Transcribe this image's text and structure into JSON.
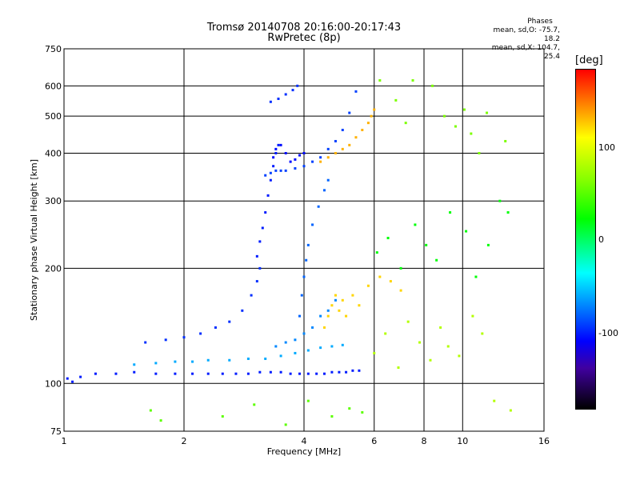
{
  "chart_data": {
    "type": "scatter",
    "title": "Tromsø 20140708 20:16:00-20:17:43",
    "subtitle": "RwPretec (8p)",
    "xlabel": "Frequency [MHz]",
    "ylabel": "Stationary phase Virtual Height [km]",
    "x_scale": "log",
    "y_scale": "log",
    "xlim": [
      1,
      16
    ],
    "ylim": [
      75,
      750
    ],
    "x_ticks": [
      1,
      2,
      4,
      6,
      8,
      10,
      16
    ],
    "y_ticks": [
      75,
      100,
      200,
      300,
      400,
      500,
      600,
      750
    ],
    "x_gridlines": [
      2,
      4,
      6,
      8,
      10
    ],
    "y_gridlines": [
      100,
      200,
      300,
      400,
      500,
      600
    ],
    "grid": true,
    "legend": {
      "title": "Phases",
      "lines": [
        "mean, sd,O: -75.7, 18.2",
        "mean, sd,X: 104.7, 25.4"
      ],
      "position": "top-right"
    },
    "colorbar": {
      "label": "[deg]",
      "ticks": [
        100,
        0,
        -100
      ],
      "range": [
        -180,
        180
      ]
    },
    "series": [
      {
        "trace": "O-ground",
        "x": [
          1.02,
          1.05,
          1.1,
          1.2,
          1.35,
          1.5,
          1.7,
          1.9,
          2.1,
          2.3,
          2.5,
          2.7,
          2.9,
          3.1,
          3.3,
          3.5,
          3.7,
          3.9,
          4.1,
          4.3,
          4.5,
          4.7,
          4.9,
          5.1,
          5.3,
          5.5
        ],
        "y": [
          103,
          101,
          104,
          106,
          106,
          107,
          106,
          106,
          106,
          106,
          106,
          106,
          106,
          107,
          107,
          107,
          106,
          106,
          106,
          106,
          106,
          107,
          107,
          107,
          108,
          108
        ],
        "phase": -100
      },
      {
        "trace": "O-mid",
        "x": [
          1.6,
          1.8,
          2.0,
          2.2,
          2.4,
          2.6,
          2.8,
          2.95,
          3.05,
          3.1
        ],
        "y": [
          128,
          130,
          132,
          135,
          140,
          145,
          155,
          170,
          185,
          200
        ],
        "phase": -95
      },
      {
        "trace": "O-rise",
        "x": [
          3.05,
          3.1,
          3.15,
          3.2,
          3.25,
          3.3,
          3.35,
          3.4,
          3.45
        ],
        "y": [
          215,
          235,
          255,
          280,
          310,
          340,
          370,
          400,
          420
        ],
        "phase": -100
      },
      {
        "trace": "O-F2",
        "x": [
          3.2,
          3.3,
          3.4,
          3.5,
          3.6,
          3.8,
          4.0,
          4.2,
          4.4,
          4.6,
          4.8,
          5.0,
          5.2,
          5.4
        ],
        "y": [
          350,
          355,
          360,
          360,
          360,
          365,
          370,
          380,
          390,
          410,
          430,
          460,
          510,
          580
        ],
        "phase": -90
      },
      {
        "trace": "O-F2-upper",
        "x": [
          3.3,
          3.45,
          3.6,
          3.75,
          3.85
        ],
        "y": [
          545,
          555,
          570,
          585,
          600
        ],
        "phase": -95
      },
      {
        "trace": "O-cluster",
        "x": [
          3.35,
          3.4,
          3.5,
          3.6,
          3.7,
          3.8,
          3.9,
          4.0
        ],
        "y": [
          390,
          410,
          420,
          400,
          380,
          385,
          395,
          400
        ],
        "phase": -105
      },
      {
        "trace": "X-low",
        "x": [
          1.5,
          1.7,
          1.9,
          2.1,
          2.3,
          2.6,
          2.9,
          3.2,
          3.5,
          3.8,
          4.1,
          4.4,
          4.7,
          5.0
        ],
        "y": [
          112,
          113,
          114,
          114,
          115,
          115,
          116,
          116,
          118,
          120,
          122,
          124,
          125,
          126
        ],
        "phase": -60
      },
      {
        "trace": "X-mid",
        "x": [
          3.4,
          3.6,
          3.8,
          4.0,
          4.2,
          4.4,
          4.6,
          4.8
        ],
        "y": [
          125,
          128,
          130,
          135,
          140,
          150,
          155,
          165
        ],
        "phase": -70
      },
      {
        "trace": "X-rise",
        "x": [
          3.9,
          3.95,
          4.0,
          4.05,
          4.1,
          4.2,
          4.35,
          4.5,
          4.6
        ],
        "y": [
          150,
          170,
          190,
          210,
          230,
          260,
          290,
          320,
          340
        ],
        "phase": -80
      },
      {
        "trace": "X-F2",
        "x": [
          4.4,
          4.6,
          4.8,
          5.0,
          5.2,
          5.4,
          5.6,
          5.8,
          5.9,
          6.0
        ],
        "y": [
          380,
          390,
          400,
          410,
          420,
          440,
          460,
          480,
          500,
          520
        ],
        "phase": 130
      },
      {
        "trace": "X-cluster",
        "x": [
          4.5,
          4.6,
          4.7,
          4.8,
          4.9,
          5.0,
          5.1,
          5.3,
          5.5,
          5.8,
          6.2,
          6.6,
          7.0
        ],
        "y": [
          140,
          150,
          160,
          170,
          155,
          165,
          150,
          170,
          160,
          180,
          190,
          185,
          175
        ],
        "phase": 120
      },
      {
        "trace": "scatter-high",
        "x": [
          6.2,
          6.8,
          7.2,
          7.5,
          8.4,
          9.0,
          9.6,
          10.1,
          10.5,
          11.0,
          11.5,
          12.8
        ],
        "y": [
          620,
          550,
          480,
          620,
          600,
          500,
          470,
          520,
          450,
          400,
          510,
          430
        ],
        "phase": 60
      },
      {
        "trace": "scatter-mid",
        "x": [
          6.1,
          6.5,
          7.0,
          7.6,
          8.1,
          8.6,
          9.3,
          10.2,
          10.8,
          11.6,
          12.4,
          13.0
        ],
        "y": [
          220,
          240,
          200,
          260,
          230,
          210,
          280,
          250,
          190,
          230,
          300,
          280
        ],
        "phase": 20
      },
      {
        "trace": "scatter-low",
        "x": [
          6.0,
          6.4,
          6.9,
          7.3,
          7.8,
          8.3,
          8.8,
          9.2,
          9.8,
          10.6,
          11.2,
          12.0,
          13.2
        ],
        "y": [
          120,
          135,
          110,
          145,
          128,
          115,
          140,
          125,
          118,
          150,
          135,
          90,
          85
        ],
        "phase": 80
      },
      {
        "trace": "stray-low",
        "x": [
          1.65,
          1.75,
          2.5,
          3.0,
          3.6,
          4.1,
          4.7,
          5.2,
          5.6
        ],
        "y": [
          85,
          80,
          82,
          88,
          78,
          90,
          82,
          86,
          84
        ],
        "phase": 50
      }
    ]
  }
}
